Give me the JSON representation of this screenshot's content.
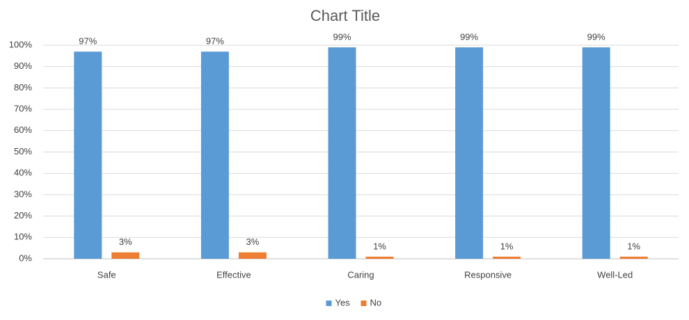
{
  "chart_data": {
    "type": "bar",
    "title": "Chart Title",
    "categories": [
      "Safe",
      "Effective",
      "Caring",
      "Responsive",
      "Well-Led"
    ],
    "series": [
      {
        "name": "Yes",
        "color": "#5b9bd5",
        "values": [
          97,
          97,
          99,
          99,
          99
        ],
        "value_labels": [
          "97%",
          "97%",
          "99%",
          "99%",
          "99%"
        ]
      },
      {
        "name": "No",
        "color": "#ed7d31",
        "values": [
          3,
          3,
          1,
          1,
          1
        ],
        "value_labels": [
          "3%",
          "3%",
          "1%",
          "1%",
          "1%"
        ]
      }
    ],
    "ylim": [
      0,
      100
    ],
    "yticks": [
      {
        "value": 0,
        "label": "0%"
      },
      {
        "value": 10,
        "label": "10%"
      },
      {
        "value": 20,
        "label": "20%"
      },
      {
        "value": 30,
        "label": "30%"
      },
      {
        "value": 40,
        "label": "40%"
      },
      {
        "value": 50,
        "label": "50%"
      },
      {
        "value": 60,
        "label": "60%"
      },
      {
        "value": 70,
        "label": "70%"
      },
      {
        "value": 80,
        "label": "80%"
      },
      {
        "value": 90,
        "label": "90%"
      },
      {
        "value": 100,
        "label": "100%"
      }
    ],
    "grid": true,
    "legend": "bottom"
  }
}
